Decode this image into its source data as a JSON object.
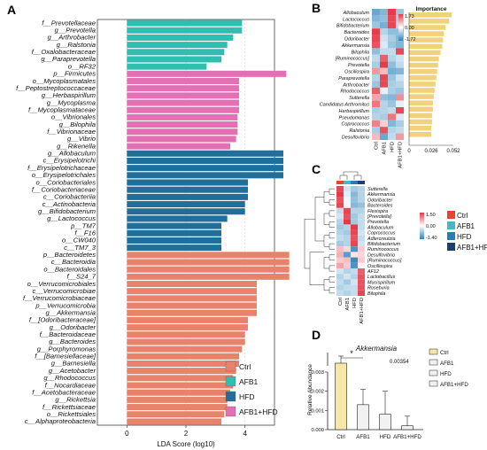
{
  "panel_labels": {
    "a": "A",
    "b": "B",
    "c": "C",
    "d": "D"
  },
  "colors": {
    "Ctrl": "#e8826a",
    "AFB1": "#2fbfb0",
    "HFD": "#1f6f9a",
    "AFB1+HFD": "#e46fb5",
    "ctrl_group_bar": "#e8826a",
    "importance_bar": "#f1d27a",
    "heat_high": "#e63946",
    "heat_mid": "#ffffff",
    "heat_low": "#2b83ba",
    "legend_c_ctrl": "#e8432d",
    "legend_c_afb1": "#45b8c7",
    "legend_c_hfd": "#2a7ab5",
    "legend_c_afbhfd": "#1c3f6e"
  },
  "chart_data": [
    {
      "panel": "A",
      "type": "bar",
      "orientation": "horizontal",
      "xlabel": "LDA Score (log10)",
      "xlim": [
        -1,
        5
      ],
      "xticks": [
        0,
        2,
        4
      ],
      "legend": [
        "Ctrl",
        "AFB1",
        "HFD",
        "AFB1+HFD"
      ],
      "legend_position": "bottom-right",
      "categories": [
        {
          "label": "f__Prevotellaceae",
          "group": "AFB1",
          "value": 3.9
        },
        {
          "label": "g__Prevotella",
          "group": "AFB1",
          "value": 3.9
        },
        {
          "label": "g__Arthrobacter",
          "group": "AFB1",
          "value": 3.6
        },
        {
          "label": "g__Ralstonia",
          "group": "AFB1",
          "value": 3.4
        },
        {
          "label": "f__Oxalobacteraceae",
          "group": "AFB1",
          "value": 3.3
        },
        {
          "label": "g__Paraprevotella",
          "group": "AFB1",
          "value": 3.2
        },
        {
          "label": "o__RF32",
          "group": "AFB1",
          "value": 2.7
        },
        {
          "label": "p__Firmicutes",
          "group": "AFB1+HFD",
          "value": 5.4
        },
        {
          "label": "o__Mycoplasmatales",
          "group": "AFB1+HFD",
          "value": 3.8
        },
        {
          "label": "f__Peptostreptococcaceae",
          "group": "AFB1+HFD",
          "value": 3.8
        },
        {
          "label": "g__Herbaspirillum",
          "group": "AFB1+HFD",
          "value": 3.8
        },
        {
          "label": "g__Mycoplasma",
          "group": "AFB1+HFD",
          "value": 3.8
        },
        {
          "label": "f__Mycoplasmataceae",
          "group": "AFB1+HFD",
          "value": 3.8
        },
        {
          "label": "o__Vibrionales",
          "group": "AFB1+HFD",
          "value": 3.75
        },
        {
          "label": "g__Bilophila",
          "group": "AFB1+HFD",
          "value": 3.75
        },
        {
          "label": "f__Vibrionaceae",
          "group": "AFB1+HFD",
          "value": 3.75
        },
        {
          "label": "g__Vibrio",
          "group": "AFB1+HFD",
          "value": 3.7
        },
        {
          "label": "g__Rikenella",
          "group": "AFB1+HFD",
          "value": 3.5
        },
        {
          "label": "g__Allobaculum",
          "group": "HFD",
          "value": 5.3
        },
        {
          "label": "c__Erysipelotrichi",
          "group": "HFD",
          "value": 5.3
        },
        {
          "label": "f__Erysipelotrichaceae",
          "group": "HFD",
          "value": 5.3
        },
        {
          "label": "o__Erysipelotrichales",
          "group": "HFD",
          "value": 5.3
        },
        {
          "label": "o__Coriobacteriales",
          "group": "HFD",
          "value": 4.1
        },
        {
          "label": "f__Coriobacteriaceae",
          "group": "HFD",
          "value": 4.1
        },
        {
          "label": "c__Coriobacteriia",
          "group": "HFD",
          "value": 4.1
        },
        {
          "label": "c__Actinobacteria",
          "group": "HFD",
          "value": 4.0
        },
        {
          "label": "g__Bifidobacterium",
          "group": "HFD",
          "value": 4.0
        },
        {
          "label": "g__Lactococcus",
          "group": "HFD",
          "value": 3.4
        },
        {
          "label": "p__TM7",
          "group": "HFD",
          "value": 3.2
        },
        {
          "label": "f__F16",
          "group": "HFD",
          "value": 3.2
        },
        {
          "label": "o__CW040",
          "group": "HFD",
          "value": 3.2
        },
        {
          "label": "c__TM7_3",
          "group": "HFD",
          "value": 3.2
        },
        {
          "label": "p__Bacteroidetes",
          "group": "Ctrl",
          "value": 5.5
        },
        {
          "label": "c__Bacteroidia",
          "group": "Ctrl",
          "value": 5.5
        },
        {
          "label": "o__Bacteroidales",
          "group": "Ctrl",
          "value": 5.5
        },
        {
          "label": "f__S24_7",
          "group": "Ctrl",
          "value": 5.5
        },
        {
          "label": "o__Verrucomicrobiales",
          "group": "Ctrl",
          "value": 4.4
        },
        {
          "label": "c__Verrucomicrobiae",
          "group": "Ctrl",
          "value": 4.4
        },
        {
          "label": "f__Verrucomicrobiaceae",
          "group": "Ctrl",
          "value": 4.4
        },
        {
          "label": "p__Verrucomicrobia",
          "group": "Ctrl",
          "value": 4.4
        },
        {
          "label": "g__Akkermansia",
          "group": "Ctrl",
          "value": 4.4
        },
        {
          "label": "f__[Odoribacteraceae]",
          "group": "Ctrl",
          "value": 4.1
        },
        {
          "label": "g__Odoribacter",
          "group": "Ctrl",
          "value": 4.1
        },
        {
          "label": "f__Bacteroidaceae",
          "group": "Ctrl",
          "value": 4.0
        },
        {
          "label": "g__Bacteroides",
          "group": "Ctrl",
          "value": 4.0
        },
        {
          "label": "g__Porphyromonas",
          "group": "Ctrl",
          "value": 3.9
        },
        {
          "label": "f__[Barnesiellaceae]",
          "group": "Ctrl",
          "value": 3.8
        },
        {
          "label": "g__Barnesiella",
          "group": "Ctrl",
          "value": 3.8
        },
        {
          "label": "g__Acetobacter",
          "group": "Ctrl",
          "value": 3.7
        },
        {
          "label": "g__Rhodococcus",
          "group": "Ctrl",
          "value": 3.6
        },
        {
          "label": "f__Nocardiaceae",
          "group": "Ctrl",
          "value": 3.6
        },
        {
          "label": "f__Acetobacteraceae",
          "group": "Ctrl",
          "value": 3.5
        },
        {
          "label": "g__Rickettsia",
          "group": "Ctrl",
          "value": 3.4
        },
        {
          "label": "f__Rickettsiaceae",
          "group": "Ctrl",
          "value": 3.4
        },
        {
          "label": "o__Rickettsiales",
          "group": "Ctrl",
          "value": 3.3
        },
        {
          "label": "c__Alphaproteobacteria",
          "group": "Ctrl",
          "value": 3.2
        }
      ]
    },
    {
      "panel": "B",
      "type": "heatmap",
      "title": "Importance",
      "rows": [
        "Allobaculum",
        "Lactococcus",
        "Bifidobacterium",
        "Bacteroides",
        "Odoribacter",
        "Akkermansia",
        "Bilophila",
        "[Ruminococcus]",
        "Prevotella",
        "Oscillospira",
        "Paraprevotella",
        "Arthrobacter",
        "Rhodococcus",
        "Sutterella",
        "Candidatus Arthromitus",
        "Herbaspirillum",
        "Pseudomonas",
        "Coprococcus",
        "Ralstonia",
        "Desulfovibrio"
      ],
      "columns": [
        "Ctrl",
        "AFB1",
        "HFD",
        "AFB1+HFD"
      ],
      "values": [
        [
          -1.2,
          -1.0,
          1.7,
          -0.8
        ],
        [
          -1.0,
          -0.9,
          1.6,
          -0.7
        ],
        [
          -0.8,
          -1.1,
          1.6,
          -0.5
        ],
        [
          1.7,
          -0.6,
          -0.9,
          -0.9
        ],
        [
          1.6,
          -0.4,
          -0.7,
          -1.0
        ],
        [
          1.5,
          -0.3,
          -0.8,
          -1.0
        ],
        [
          -0.9,
          -0.5,
          -0.5,
          1.6
        ],
        [
          -0.5,
          1.4,
          -0.6,
          -0.4
        ],
        [
          -0.7,
          1.7,
          -0.9,
          -0.5
        ],
        [
          0.9,
          0.6,
          -1.1,
          -1.0
        ],
        [
          -0.6,
          1.6,
          -0.8,
          -0.4
        ],
        [
          -0.8,
          1.6,
          -0.7,
          -0.6
        ],
        [
          1.4,
          -0.2,
          -0.7,
          -0.8
        ],
        [
          0.8,
          -0.9,
          -1.0,
          1.0
        ],
        [
          1.2,
          -0.6,
          -0.8,
          -0.2
        ],
        [
          -0.7,
          -0.6,
          -0.5,
          1.6
        ],
        [
          -0.6,
          -0.7,
          1.2,
          -0.3
        ],
        [
          1.1,
          0.4,
          -1.0,
          -0.7
        ],
        [
          -0.7,
          1.5,
          -0.6,
          -0.5
        ],
        [
          0.6,
          -1.2,
          -0.5,
          0.9
        ]
      ],
      "colorbar": {
        "max_label": "1.73",
        "mid_label": "0.00",
        "min_label": "-1.72"
      },
      "importance": [
        0.05,
        0.047,
        0.043,
        0.041,
        0.04,
        0.039,
        0.037,
        0.035,
        0.034,
        0.033,
        0.032,
        0.031,
        0.03,
        0.029,
        0.028,
        0.028,
        0.027,
        0.027,
        0.026,
        0.026
      ],
      "importance_ticks": [
        "0",
        "0.026",
        "0.052"
      ],
      "importance_xlim": [
        0,
        0.052
      ]
    },
    {
      "panel": "C",
      "type": "heatmap",
      "rows": [
        "Sutterella",
        "Akkermansia",
        "Odoribacter",
        "Bacteroides",
        "Flexispira",
        "[Prevotella]",
        "Prevotella",
        "Allobaculum",
        "Coprococcus",
        "Adlercreutzia",
        "Bifidobacterium",
        "Ruminococcus",
        "Desulfovibrio",
        "[Ruminococcus]",
        "Oscillospira",
        "AF12",
        "Lactobacillus",
        "Mucispirillum",
        "Roseburia",
        "Bilophila"
      ],
      "columns": [
        "Ctrl",
        "AFB1",
        "HFD",
        "AFB1+HFD"
      ],
      "values": [
        [
          1.4,
          -0.3,
          -0.6,
          -0.5
        ],
        [
          1.5,
          -0.2,
          -0.8,
          -0.5
        ],
        [
          1.3,
          -0.1,
          -0.7,
          -0.5
        ],
        [
          1.4,
          0.1,
          -0.8,
          -0.7
        ],
        [
          -0.4,
          1.4,
          -0.5,
          -0.5
        ],
        [
          -0.3,
          1.3,
          -0.6,
          -0.4
        ],
        [
          -0.5,
          1.5,
          -0.6,
          -0.4
        ],
        [
          -0.6,
          -0.5,
          1.5,
          -0.4
        ],
        [
          -0.5,
          -0.6,
          1.4,
          -0.3
        ],
        [
          -0.4,
          -0.5,
          1.3,
          -0.4
        ],
        [
          -0.6,
          -0.5,
          1.4,
          -0.3
        ],
        [
          0.5,
          0.3,
          -1.2,
          0.4
        ],
        [
          0.6,
          -1.1,
          0.2,
          0.3
        ],
        [
          0.4,
          0.5,
          -1.3,
          0.4
        ],
        [
          0.7,
          0.4,
          -1.2,
          0.1
        ],
        [
          -0.3,
          -0.5,
          -0.4,
          1.2
        ],
        [
          -0.5,
          -0.3,
          -0.5,
          1.3
        ],
        [
          -0.4,
          -0.6,
          -0.3,
          1.3
        ],
        [
          -0.5,
          -0.4,
          -0.4,
          1.3
        ],
        [
          -0.4,
          -0.5,
          -0.4,
          1.4
        ]
      ],
      "colorbar": {
        "max_label": "1.50",
        "mid_label": "0.00",
        "min_label": "-1.40"
      },
      "legend": [
        "Ctrl",
        "AFB1",
        "HFD",
        "AFB1+HFD"
      ],
      "legend_position": "right"
    },
    {
      "panel": "D",
      "type": "bar",
      "title": "Akkermansia",
      "ylabel": "Relative Abundance",
      "categories": [
        "Ctrl",
        "AFB1",
        "HFD",
        "AFB1+HFD"
      ],
      "values": [
        0.0048,
        0.0013,
        0.0008,
        0.0002
      ],
      "errors": [
        0.001,
        0.0008,
        0.0012,
        0.0005
      ],
      "ylim_lower": [
        0,
        0.003
      ],
      "upper_tick": "0.00354",
      "yticks": [
        "0.000",
        "0.001",
        "0.002",
        "0.003"
      ],
      "significance": "*",
      "legend": [
        "Ctrl",
        "AFB1",
        "HFD",
        "AFB1+HFD"
      ],
      "legend_position": "top-right"
    }
  ]
}
